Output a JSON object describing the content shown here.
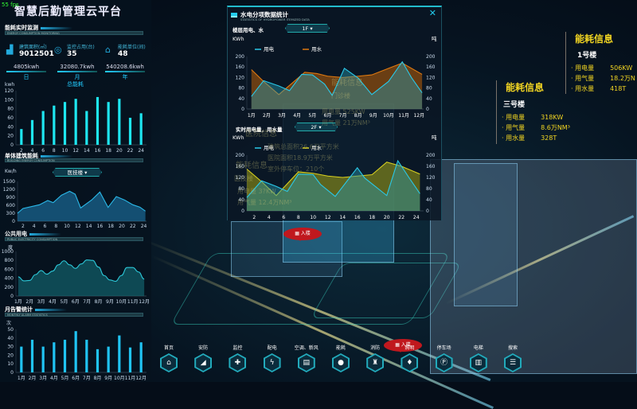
{
  "fps": "55 fps",
  "app_title": "智慧后勤管理云平台",
  "colors": {
    "accent": "#22ccee",
    "bar": "#1ee6f0",
    "alarm_bar": "#20c4f4",
    "electric": "#2ab8e8",
    "water_orange": "#e07a10",
    "water_yellow": "#d8d020",
    "info_yellow": "#f2d522"
  },
  "left": {
    "monitor": {
      "title": "能耗实时监测",
      "subtitle": "ENERGY CONSUMPTION MONITORING",
      "stats": [
        {
          "icon": "building-chart-icon",
          "label": "建筑面积(㎡)",
          "value": "9012501"
        },
        {
          "icon": "monitor-circle-icon",
          "label": "监控占用(台)",
          "value": "35"
        },
        {
          "icon": "house-icon",
          "label": "能耗单位(间)",
          "value": "48"
        }
      ],
      "periods": [
        {
          "value": "4805kwh",
          "label": "日"
        },
        {
          "value": "32080.7kwh",
          "label": "月"
        },
        {
          "value": "540208.6kwh",
          "label": "年"
        }
      ]
    },
    "total": {
      "title": "总能耗",
      "unit": "kwh"
    },
    "building": {
      "title": "单体建筑能耗",
      "subtitle": "BUILDING ENERGY CONSUMPTION",
      "unit": "Kw/h",
      "dropdown": "医技楼"
    },
    "public": {
      "title": "公共用电",
      "subtitle": "PUBLIC ELECTRICITY CONSUMPTION",
      "unit": "度"
    },
    "alarm": {
      "title": "月告警统计",
      "subtitle": "MONTHLY ALARM STATISTICS",
      "unit": "次"
    }
  },
  "modal": {
    "title": "水电分项数据统计",
    "subtitle": "STATISTICS OF HYDROPOWER ITEMIZED DATA",
    "close_icon": "close-icon",
    "section1": {
      "label": "楼层用电、水",
      "dropdown": "1F"
    },
    "section2": {
      "label": "实时用电量，用水量",
      "dropdown": "2F"
    }
  },
  "chart_data": [
    {
      "id": "total",
      "type": "bar",
      "categories": [
        "2",
        "4",
        "6",
        "8",
        "10",
        "12",
        "14",
        "16",
        "18",
        "20",
        "22",
        "24"
      ],
      "values": [
        35,
        55,
        75,
        87,
        95,
        102,
        75,
        106,
        95,
        102,
        60,
        70
      ],
      "ylabel": "kwh",
      "ylim": [
        0,
        120
      ],
      "yticks": [
        0,
        20,
        40,
        60,
        80,
        100,
        120
      ],
      "title": "总能耗"
    },
    {
      "id": "building",
      "type": "area",
      "x": [
        1,
        2,
        3.5,
        5,
        6.5,
        7.5,
        9,
        10.5,
        11.5,
        12.5,
        14.5,
        16,
        17.5,
        19,
        20.5,
        22,
        23.3,
        24.3
      ],
      "values": [
        300,
        480,
        550,
        620,
        780,
        700,
        980,
        1130,
        1020,
        500,
        800,
        1100,
        520,
        930,
        800,
        620,
        530,
        380
      ],
      "xticks": [
        2,
        4,
        6,
        8,
        10,
        12,
        14,
        16,
        18,
        20,
        22,
        24
      ],
      "ylabel": "Kw/h",
      "ylim": [
        0,
        1500
      ],
      "yticks": [
        0,
        300,
        600,
        900,
        1200,
        1500
      ]
    },
    {
      "id": "public",
      "type": "area",
      "x": [
        1,
        1.5,
        2,
        2.5,
        3,
        3.5,
        4,
        4.5,
        5,
        5.5,
        6,
        6.5,
        7,
        7.5,
        8,
        8.5,
        9,
        9.5,
        10,
        10.5,
        11,
        11.5,
        12
      ],
      "values": [
        430,
        340,
        350,
        480,
        570,
        490,
        560,
        700,
        790,
        700,
        620,
        720,
        810,
        800,
        650,
        460,
        360,
        330,
        460,
        640,
        640,
        540,
        380
      ],
      "categories": [
        "1月",
        "2月",
        "3月",
        "4月",
        "5月",
        "6月",
        "7月",
        "8月",
        "9月",
        "10月",
        "11月",
        "12月"
      ],
      "ylabel": "度",
      "ylim": [
        0,
        1000
      ],
      "yticks": [
        0,
        200,
        400,
        600,
        800,
        1000
      ]
    },
    {
      "id": "alarm",
      "type": "bar",
      "categories": [
        "1月",
        "2月",
        "3月",
        "4月",
        "5月",
        "6月",
        "7月",
        "8月",
        "9月",
        "10月",
        "11月",
        "12月"
      ],
      "values": [
        30,
        38,
        30,
        35,
        38,
        48,
        38,
        27,
        30,
        43,
        29,
        35
      ],
      "ylabel": "次",
      "ylim": [
        0,
        50
      ],
      "yticks": [
        0,
        10,
        20,
        30,
        40,
        50
      ]
    },
    {
      "id": "floor",
      "type": "area",
      "categories": [
        "1月",
        "2月",
        "3月",
        "4月",
        "5月",
        "6月",
        "7月",
        "8月",
        "9月",
        "10月",
        "11月",
        "12月"
      ],
      "ylabel": "KWh",
      "y2label": "吨",
      "ylim": [
        0,
        200
      ],
      "yticks": [
        0,
        40,
        80,
        120,
        160,
        200
      ],
      "series": [
        {
          "name": "用电",
          "x": [
            1,
            1.8,
            2.8,
            3.5,
            4.3,
            5,
            5.8,
            6.3,
            7.1,
            8,
            8.9,
            10,
            10.9,
            11.5,
            12.2
          ],
          "values": [
            48,
            108,
            88,
            70,
            132,
            130,
            95,
            52,
            155,
            118,
            55,
            105,
            180,
            120,
            62
          ]
        },
        {
          "name": "用水",
          "x": [
            1,
            1.8,
            2.8,
            3.5,
            4.5,
            5.3,
            6,
            7,
            8,
            8.9,
            10,
            10.9,
            12.2
          ],
          "values": [
            150,
            105,
            55,
            90,
            140,
            135,
            125,
            120,
            125,
            130,
            155,
            175,
            132
          ]
        }
      ]
    },
    {
      "id": "realtime",
      "type": "area",
      "categories": [
        "2",
        "4",
        "6",
        "8",
        "10",
        "12",
        "14",
        "16",
        "18",
        "20",
        "22",
        "24"
      ],
      "ylabel": "KWh",
      "y2label": "吨",
      "ylim": [
        0,
        200
      ],
      "yticks": [
        0,
        40,
        80,
        120,
        160,
        200
      ],
      "series": [
        {
          "name": "用电",
          "x": [
            1,
            3,
            5,
            6.5,
            8,
            10,
            11,
            13,
            16,
            17,
            20,
            21.5,
            23,
            24.5
          ],
          "values": [
            48,
            108,
            88,
            70,
            132,
            130,
            95,
            52,
            155,
            118,
            55,
            180,
            120,
            62
          ]
        },
        {
          "name": "用水",
          "x": [
            1,
            3,
            5,
            8,
            10,
            12,
            14,
            16,
            18,
            20,
            22,
            24.5
          ],
          "values": [
            150,
            105,
            55,
            140,
            135,
            125,
            120,
            125,
            130,
            175,
            160,
            132
          ]
        }
      ]
    }
  ],
  "ghost_text": [
    "能耗信息",
    "门诊楼",
    "用电量  525KW",
    "用气量  21万NM³",
    "医院信息",
    "建筑总面积26.6万平方米",
    "医院面积18.9万平方米",
    "室外停车位：210个",
    "能耗信息",
    "医技楼",
    "用电量  3?KW",
    "用气量  12.4万NM³"
  ],
  "info_panels": [
    {
      "title": "能耗信息",
      "building": "1号楼",
      "rows": [
        {
          "k": "用电量",
          "v": "506KW"
        },
        {
          "k": "用气量",
          "v": "18.2万N"
        },
        {
          "k": "用水量",
          "v": "418T"
        }
      ]
    },
    {
      "title": "能耗信息",
      "building": "三号楼",
      "rows": [
        {
          "k": "用电量",
          "v": "318KW"
        },
        {
          "k": "用气量",
          "v": "8.6万NM³"
        },
        {
          "k": "用水量",
          "v": "328T"
        }
      ]
    }
  ],
  "markers": [
    {
      "label": "入楼",
      "icon": "building-icon"
    },
    {
      "label": "入楼",
      "icon": "building-icon"
    }
  ],
  "nav": [
    {
      "label": "首页",
      "icon": "home-icon",
      "g": "⌂"
    },
    {
      "label": "安防",
      "icon": "camera-icon",
      "g": "◢"
    },
    {
      "label": "监控",
      "icon": "shield-icon",
      "g": "✚"
    },
    {
      "label": "配电",
      "icon": "lightning-icon",
      "g": "ϟ"
    },
    {
      "label": "空调、新风",
      "icon": "air-conditioner-icon",
      "g": "▤"
    },
    {
      "label": "能耗",
      "icon": "drop-icon",
      "g": "●"
    },
    {
      "label": "消防",
      "icon": "hydrant-icon",
      "g": "♜"
    },
    {
      "label": "照明",
      "icon": "bulb-icon",
      "g": "♦"
    },
    {
      "label": "停车场",
      "icon": "parking-icon",
      "g": "Ⓟ"
    },
    {
      "label": "电梯",
      "icon": "elevator-icon",
      "g": "▥"
    },
    {
      "label": "搜索",
      "icon": "search-list-icon",
      "g": "☰"
    }
  ]
}
